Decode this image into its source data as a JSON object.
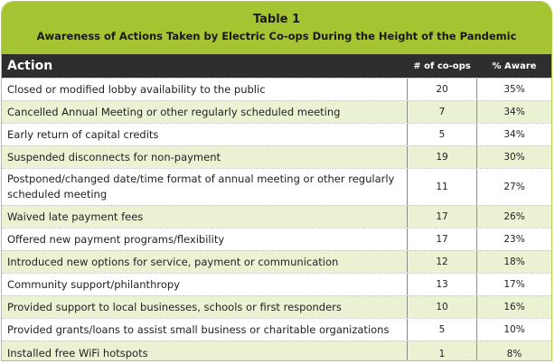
{
  "table": {
    "title": "Table 1",
    "subtitle": "Awareness of Actions Taken by Electric Co-ops During the Height of the Pandemic",
    "headers": {
      "action": "Action",
      "coops": "# of co-ops",
      "aware": "% Aware"
    },
    "rows": [
      {
        "action": "Closed or modified lobby availability to the public",
        "coops": "20",
        "aware": "35%"
      },
      {
        "action": "Cancelled Annual Meeting or other regularly scheduled meeting",
        "coops": "7",
        "aware": "34%"
      },
      {
        "action": "Early return of capital credits",
        "coops": "5",
        "aware": "34%"
      },
      {
        "action": "Suspended disconnects for non-payment",
        "coops": "19",
        "aware": "30%"
      },
      {
        "action": "Postponed/changed date/time format of annual meeting or other regularly scheduled meeting",
        "coops": "11",
        "aware": "27%"
      },
      {
        "action": "Waived late payment fees",
        "coops": "17",
        "aware": "26%"
      },
      {
        "action": "Offered new payment programs/flexibility",
        "coops": "17",
        "aware": "23%"
      },
      {
        "action": "Introduced new options for service, payment or communication",
        "coops": "12",
        "aware": "18%"
      },
      {
        "action": "Community support/philanthropy",
        "coops": "13",
        "aware": "17%"
      },
      {
        "action": "Provided support to local businesses, schools or first responders",
        "coops": "10",
        "aware": "16%"
      },
      {
        "action": "Provided grants/loans to assist small business or charitable organizations",
        "coops": "5",
        "aware": "10%"
      },
      {
        "action": "Installed free WiFi hotspots",
        "coops": "1",
        "aware": "8%"
      }
    ]
  },
  "colors": {
    "title_bg": "#a5c431",
    "header_bg": "#2e2e2e",
    "stripe": "#ebf1d3"
  }
}
